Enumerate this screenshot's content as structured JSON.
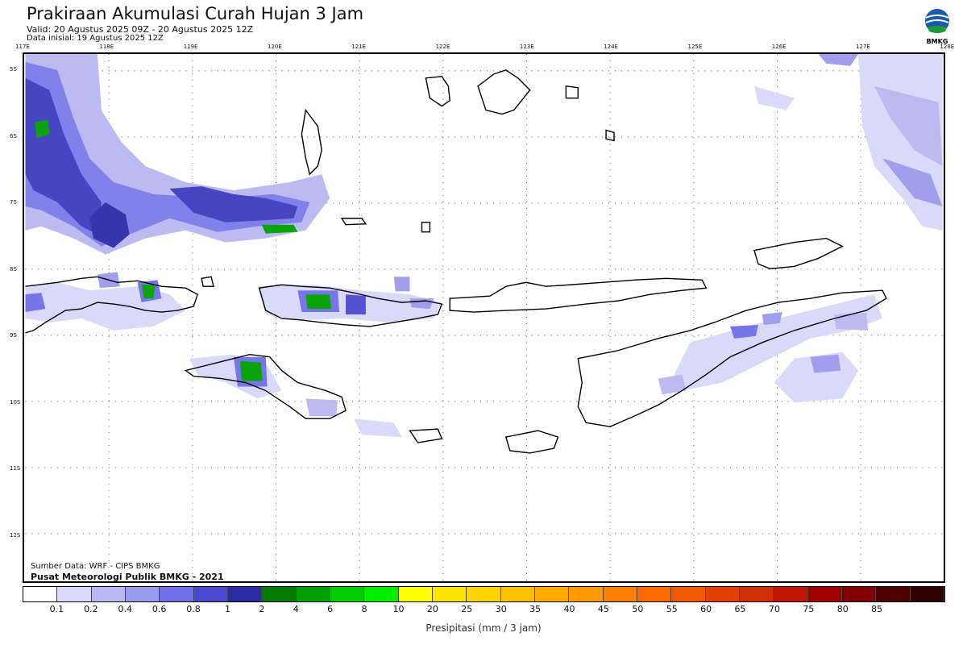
{
  "header": {
    "title": "Prakiraan Akumulasi Curah Hujan 3 Jam",
    "valid": "Valid: 20 Agustus 2025 09Z - 20 Agustus 2025 12Z",
    "initial": "Data inisial: 19 Agustus 2025 12Z"
  },
  "logo": {
    "text": "BMKG",
    "icon": "bmkg-logo-icon"
  },
  "axes": {
    "lon_labels": [
      "117E",
      "118E",
      "119E",
      "120E",
      "121E",
      "122E",
      "123E",
      "124E",
      "125E",
      "126E",
      "127E",
      "128E"
    ],
    "lat_labels": [
      "5S",
      "6S",
      "7S",
      "8S",
      "9S",
      "10S",
      "11S",
      "12S"
    ]
  },
  "credits": {
    "source": "Sumber Data: WRF - CIPS BMKG",
    "center": "Pusat Meteorologi Publik BMKG - 2021"
  },
  "legend": {
    "colors": [
      "#ffffff",
      "#d8d8fa",
      "#b8b8f2",
      "#9a9aee",
      "#6f6fe8",
      "#4a4ad0",
      "#2c2ca6",
      "#007a00",
      "#00a000",
      "#00cc00",
      "#00ee00",
      "#ffff00",
      "#ffe400",
      "#ffd400",
      "#ffc000",
      "#ffaa00",
      "#ff9a00",
      "#ff8000",
      "#ff6a00",
      "#f05a00",
      "#e04000",
      "#d03000",
      "#c01800",
      "#a00000",
      "#800000",
      "#500000",
      "#300000"
    ],
    "ticks": [
      "0.1",
      "0.2",
      "0.4",
      "0.6",
      "0.8",
      "1",
      "2",
      "4",
      "6",
      "8",
      "10",
      "20",
      "25",
      "30",
      "35",
      "40",
      "45",
      "50",
      "55",
      "60",
      "65",
      "70",
      "75",
      "80",
      "85"
    ],
    "label": "Presipitasi (mm / 3 jam)"
  }
}
